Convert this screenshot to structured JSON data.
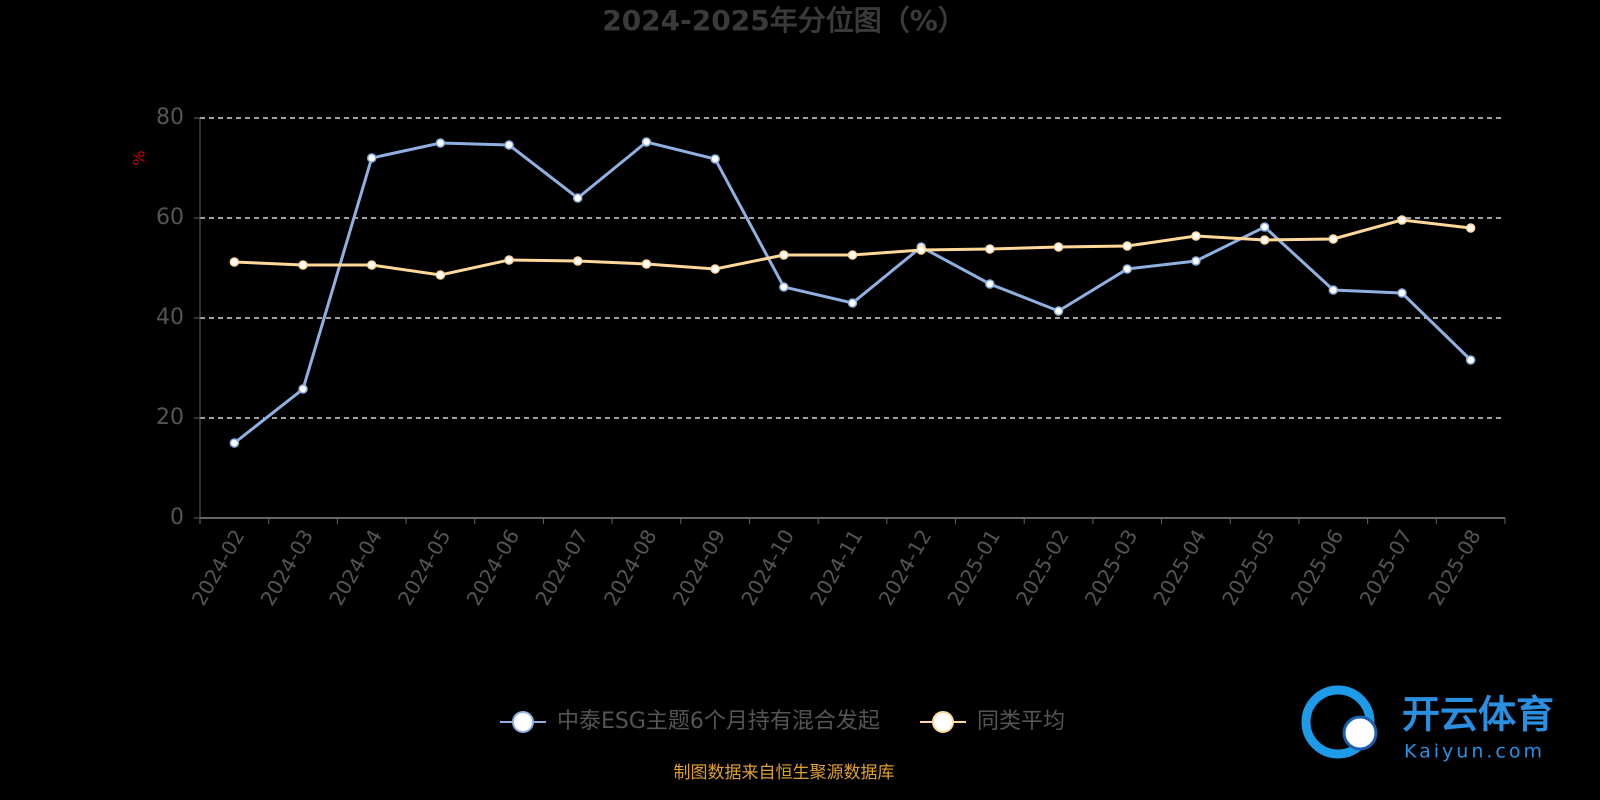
{
  "chart_data": {
    "type": "line",
    "title": "2024-2025年分位图（%）",
    "y_label": "%",
    "categories": [
      "2024-02",
      "2024-03",
      "2024-04",
      "2024-05",
      "2024-06",
      "2024-07",
      "2024-08",
      "2024-09",
      "2024-10",
      "2024-11",
      "2024-12",
      "2025-01",
      "2025-02",
      "2025-03",
      "2025-04",
      "2025-05",
      "2025-06",
      "2025-07",
      "2025-08"
    ],
    "series": [
      {
        "name": "中泰ESG主题6个月持有混合发起",
        "color": "#8fb0e0",
        "values": [
          15,
          25.8,
          72,
          75,
          74.6,
          64,
          75.2,
          71.8,
          46.2,
          43,
          54.2,
          46.8,
          41.4,
          49.8,
          51.4,
          58.2,
          45.6,
          45,
          31.6
        ]
      },
      {
        "name": "同类平均",
        "color": "#ffd89a",
        "values": [
          51.2,
          50.6,
          50.6,
          48.6,
          51.6,
          51.4,
          50.8,
          49.8,
          52.6,
          52.6,
          53.6,
          53.8,
          54.2,
          54.4,
          56.4,
          55.6,
          55.8,
          59.6,
          58
        ]
      }
    ],
    "ylim": [
      0,
      80
    ],
    "yticks": [
      0,
      20,
      40,
      60,
      80
    ],
    "grid": true,
    "source": "制图数据来自恒生聚源数据库"
  },
  "watermark": {
    "brand": "开云体育",
    "site": "Kaiyun.com"
  }
}
